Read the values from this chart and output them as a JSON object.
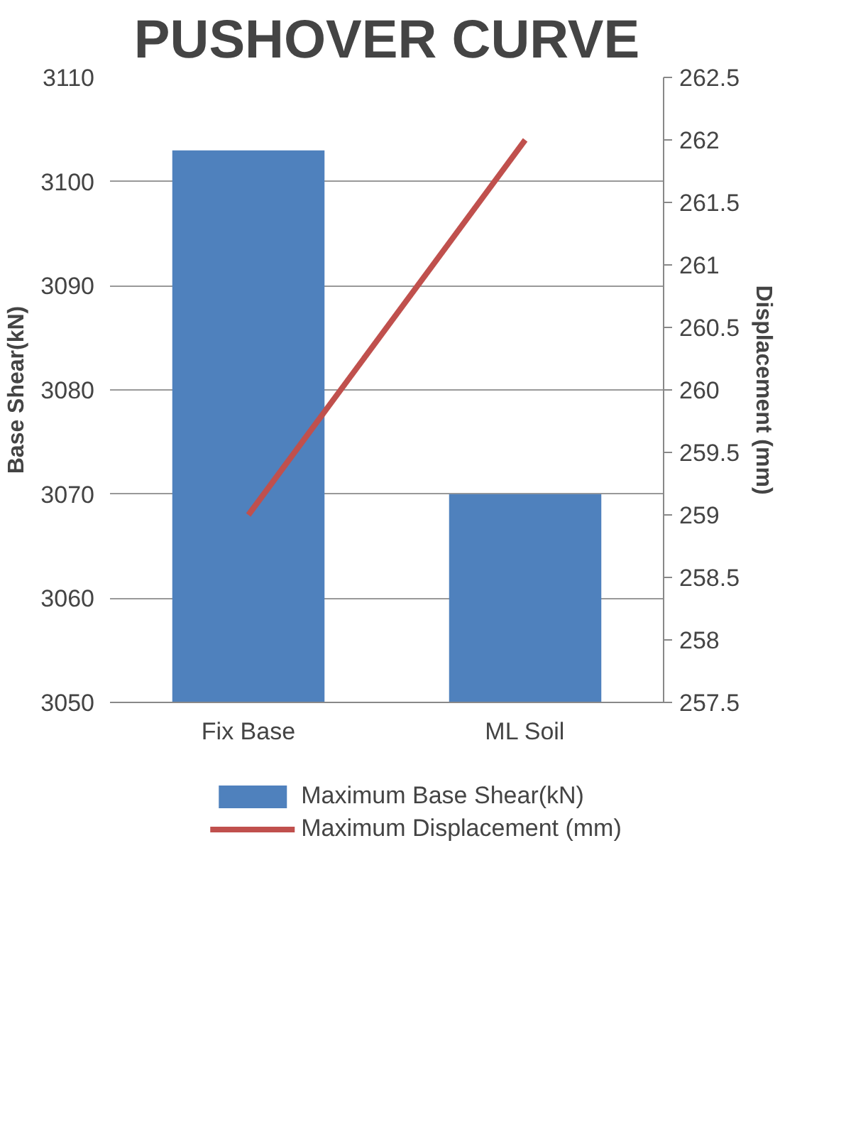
{
  "chart_data": {
    "type": "bar",
    "title": "PUSHOVER CURVE",
    "ylabel": "Base Shear(kN)",
    "y2label": "Displacement (mm)",
    "categories": [
      "Fix Base",
      "ML Soil"
    ],
    "series": [
      {
        "name": "Maximum Base Shear(kN)",
        "color": "#4f81bd",
        "values": [
          3103,
          3070
        ]
      },
      {
        "name": "Maximum Displacement (mm)",
        "color": "#c0504d",
        "values": [
          259,
          262
        ],
        "type": "line",
        "axis": "y2"
      }
    ],
    "ylim": [
      3050,
      3110
    ],
    "yticks": [
      3050,
      3060,
      3070,
      3080,
      3090,
      3100,
      3110
    ],
    "y2lim": [
      257.5,
      262.5
    ],
    "y2ticks": [
      257.5,
      258,
      258.5,
      259,
      259.5,
      260,
      260.5,
      261,
      261.5,
      262,
      262.5
    ],
    "grid": "y",
    "legend": "bottom"
  }
}
